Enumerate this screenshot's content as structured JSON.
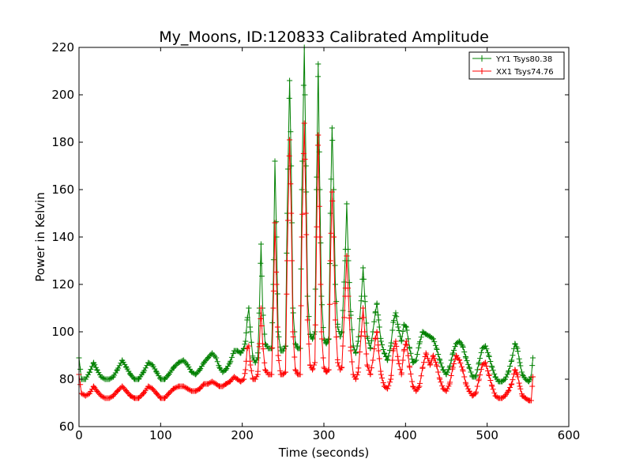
{
  "chart_data": {
    "type": "line",
    "title": "My_Moons, ID:120833 Calibrated Amplitude",
    "xlabel": "Time (seconds)",
    "ylabel": "Power in Kelvin",
    "xlim": [
      0,
      600
    ],
    "ylim": [
      60,
      220
    ],
    "xticks": [
      0,
      100,
      200,
      300,
      400,
      500,
      600
    ],
    "yticks": [
      60,
      80,
      100,
      120,
      140,
      160,
      180,
      200,
      220
    ],
    "grid": false,
    "legend_position": "top-right",
    "marker": "+",
    "series": [
      {
        "name": "YY1 Tsys80.38",
        "color": "#008000",
        "points": [
          [
            0,
            89
          ],
          [
            3,
            80
          ],
          [
            8,
            80
          ],
          [
            13,
            83
          ],
          [
            18,
            87
          ],
          [
            22,
            84
          ],
          [
            27,
            81
          ],
          [
            32,
            80
          ],
          [
            37,
            80
          ],
          [
            42,
            81
          ],
          [
            47,
            84
          ],
          [
            53,
            88
          ],
          [
            58,
            85
          ],
          [
            63,
            82
          ],
          [
            68,
            80
          ],
          [
            73,
            80
          ],
          [
            79,
            83
          ],
          [
            85,
            87
          ],
          [
            90,
            86
          ],
          [
            95,
            83
          ],
          [
            100,
            80
          ],
          [
            105,
            80
          ],
          [
            110,
            82
          ],
          [
            116,
            85
          ],
          [
            122,
            87
          ],
          [
            128,
            88
          ],
          [
            133,
            86
          ],
          [
            138,
            83
          ],
          [
            143,
            82
          ],
          [
            148,
            84
          ],
          [
            153,
            87
          ],
          [
            158,
            89
          ],
          [
            163,
            91
          ],
          [
            168,
            89
          ],
          [
            172,
            85
          ],
          [
            176,
            83
          ],
          [
            180,
            84
          ],
          [
            185,
            87
          ],
          [
            190,
            92
          ],
          [
            194,
            92
          ],
          [
            198,
            91
          ],
          [
            202,
            93
          ],
          [
            204,
            96
          ],
          [
            206,
            105
          ],
          [
            208,
            110
          ],
          [
            210,
            100
          ],
          [
            213,
            89
          ],
          [
            216,
            87
          ],
          [
            219,
            89
          ],
          [
            221,
            110
          ],
          [
            223,
            137
          ],
          [
            225,
            110
          ],
          [
            228,
            95
          ],
          [
            232,
            93
          ],
          [
            236,
            93
          ],
          [
            238,
            120
          ],
          [
            240,
            172
          ],
          [
            242,
            140
          ],
          [
            244,
            100
          ],
          [
            247,
            92
          ],
          [
            250,
            92
          ],
          [
            253,
            94
          ],
          [
            255,
            150
          ],
          [
            258,
            206
          ],
          [
            260,
            170
          ],
          [
            262,
            110
          ],
          [
            265,
            95
          ],
          [
            268,
            93
          ],
          [
            271,
            93
          ],
          [
            273,
            160
          ],
          [
            276,
            220
          ],
          [
            278,
            170
          ],
          [
            280,
            115
          ],
          [
            283,
            99
          ],
          [
            286,
            97
          ],
          [
            289,
            100
          ],
          [
            291,
            160
          ],
          [
            293,
            213
          ],
          [
            295,
            160
          ],
          [
            297,
            115
          ],
          [
            300,
            97
          ],
          [
            303,
            95
          ],
          [
            306,
            97
          ],
          [
            308,
            150
          ],
          [
            310,
            186
          ],
          [
            312,
            160
          ],
          [
            314,
            120
          ],
          [
            317,
            102
          ],
          [
            320,
            98
          ],
          [
            322,
            100
          ],
          [
            326,
            130
          ],
          [
            328,
            154
          ],
          [
            330,
            130
          ],
          [
            333,
            107
          ],
          [
            336,
            94
          ],
          [
            339,
            91
          ],
          [
            342,
            96
          ],
          [
            346,
            115
          ],
          [
            348,
            127
          ],
          [
            350,
            115
          ],
          [
            353,
            98
          ],
          [
            357,
            93
          ],
          [
            360,
            100
          ],
          [
            363,
            108
          ],
          [
            365,
            112
          ],
          [
            367,
            105
          ],
          [
            370,
            96
          ],
          [
            374,
            91
          ],
          [
            378,
            88
          ],
          [
            382,
            94
          ],
          [
            385,
            104
          ],
          [
            388,
            108
          ],
          [
            391,
            102
          ],
          [
            395,
            96
          ],
          [
            398,
            103
          ],
          [
            401,
            102
          ],
          [
            405,
            93
          ],
          [
            409,
            87
          ],
          [
            413,
            88
          ],
          [
            417,
            95
          ],
          [
            421,
            100
          ],
          [
            425,
            99
          ],
          [
            430,
            98
          ],
          [
            434,
            97
          ],
          [
            438,
            93
          ],
          [
            442,
            88
          ],
          [
            446,
            84
          ],
          [
            450,
            82
          ],
          [
            454,
            85
          ],
          [
            458,
            91
          ],
          [
            462,
            95
          ],
          [
            466,
            96
          ],
          [
            470,
            94
          ],
          [
            474,
            89
          ],
          [
            478,
            85
          ],
          [
            482,
            81
          ],
          [
            486,
            81
          ],
          [
            490,
            87
          ],
          [
            494,
            93
          ],
          [
            498,
            94
          ],
          [
            502,
            90
          ],
          [
            506,
            85
          ],
          [
            510,
            81
          ],
          [
            514,
            79
          ],
          [
            518,
            79
          ],
          [
            522,
            80
          ],
          [
            526,
            83
          ],
          [
            530,
            88
          ],
          [
            534,
            95
          ],
          [
            537,
            93
          ],
          [
            540,
            87
          ],
          [
            543,
            82
          ],
          [
            547,
            80
          ],
          [
            551,
            79
          ],
          [
            554,
            81
          ],
          [
            556,
            89
          ]
        ]
      },
      {
        "name": "XX1 Tsys74.76",
        "color": "#ff0000",
        "points": [
          [
            0,
            82
          ],
          [
            3,
            74
          ],
          [
            8,
            73
          ],
          [
            13,
            74
          ],
          [
            18,
            77
          ],
          [
            22,
            75
          ],
          [
            27,
            73
          ],
          [
            32,
            72
          ],
          [
            37,
            72
          ],
          [
            42,
            73
          ],
          [
            47,
            75
          ],
          [
            53,
            77
          ],
          [
            58,
            75
          ],
          [
            63,
            73
          ],
          [
            68,
            72
          ],
          [
            73,
            72
          ],
          [
            79,
            74
          ],
          [
            85,
            77
          ],
          [
            90,
            76
          ],
          [
            95,
            74
          ],
          [
            100,
            72
          ],
          [
            105,
            72
          ],
          [
            110,
            74
          ],
          [
            116,
            76
          ],
          [
            122,
            77
          ],
          [
            128,
            77
          ],
          [
            133,
            76
          ],
          [
            138,
            75
          ],
          [
            143,
            75
          ],
          [
            148,
            76
          ],
          [
            153,
            78
          ],
          [
            158,
            78
          ],
          [
            163,
            79
          ],
          [
            168,
            78
          ],
          [
            172,
            77
          ],
          [
            176,
            77
          ],
          [
            180,
            78
          ],
          [
            185,
            79
          ],
          [
            190,
            81
          ],
          [
            194,
            80
          ],
          [
            198,
            79
          ],
          [
            202,
            80
          ],
          [
            204,
            84
          ],
          [
            206,
            93
          ],
          [
            208,
            94
          ],
          [
            210,
            86
          ],
          [
            213,
            80
          ],
          [
            216,
            80
          ],
          [
            219,
            82
          ],
          [
            221,
            95
          ],
          [
            223,
            110
          ],
          [
            225,
            95
          ],
          [
            228,
            84
          ],
          [
            232,
            82
          ],
          [
            236,
            82
          ],
          [
            238,
            110
          ],
          [
            240,
            146
          ],
          [
            242,
            120
          ],
          [
            244,
            90
          ],
          [
            247,
            82
          ],
          [
            250,
            82
          ],
          [
            253,
            83
          ],
          [
            255,
            130
          ],
          [
            258,
            181
          ],
          [
            260,
            150
          ],
          [
            262,
            100
          ],
          [
            265,
            84
          ],
          [
            268,
            82
          ],
          [
            271,
            82
          ],
          [
            273,
            140
          ],
          [
            276,
            188
          ],
          [
            278,
            150
          ],
          [
            280,
            105
          ],
          [
            283,
            86
          ],
          [
            286,
            84
          ],
          [
            289,
            87
          ],
          [
            291,
            140
          ],
          [
            293,
            183
          ],
          [
            295,
            140
          ],
          [
            297,
            100
          ],
          [
            300,
            85
          ],
          [
            303,
            83
          ],
          [
            306,
            84
          ],
          [
            308,
            130
          ],
          [
            310,
            159
          ],
          [
            312,
            140
          ],
          [
            314,
            105
          ],
          [
            317,
            87
          ],
          [
            320,
            84
          ],
          [
            322,
            85
          ],
          [
            326,
            115
          ],
          [
            328,
            132
          ],
          [
            330,
            115
          ],
          [
            333,
            92
          ],
          [
            336,
            82
          ],
          [
            339,
            80
          ],
          [
            342,
            83
          ],
          [
            346,
            100
          ],
          [
            348,
            110
          ],
          [
            350,
            100
          ],
          [
            353,
            86
          ],
          [
            357,
            82
          ],
          [
            360,
            88
          ],
          [
            363,
            97
          ],
          [
            365,
            100
          ],
          [
            367,
            92
          ],
          [
            370,
            82
          ],
          [
            374,
            77
          ],
          [
            378,
            76
          ],
          [
            382,
            80
          ],
          [
            385,
            92
          ],
          [
            388,
            96
          ],
          [
            391,
            88
          ],
          [
            395,
            82
          ],
          [
            398,
            92
          ],
          [
            401,
            96
          ],
          [
            405,
            85
          ],
          [
            409,
            77
          ],
          [
            413,
            75
          ],
          [
            417,
            77
          ],
          [
            421,
            85
          ],
          [
            425,
            91
          ],
          [
            430,
            86
          ],
          [
            434,
            90
          ],
          [
            438,
            86
          ],
          [
            442,
            80
          ],
          [
            446,
            76
          ],
          [
            450,
            75
          ],
          [
            454,
            78
          ],
          [
            458,
            85
          ],
          [
            462,
            90
          ],
          [
            466,
            88
          ],
          [
            470,
            84
          ],
          [
            474,
            78
          ],
          [
            478,
            75
          ],
          [
            482,
            73
          ],
          [
            486,
            74
          ],
          [
            490,
            80
          ],
          [
            494,
            86
          ],
          [
            498,
            87
          ],
          [
            502,
            82
          ],
          [
            506,
            77
          ],
          [
            510,
            73
          ],
          [
            514,
            72
          ],
          [
            518,
            72
          ],
          [
            522,
            73
          ],
          [
            526,
            75
          ],
          [
            530,
            78
          ],
          [
            534,
            84
          ],
          [
            537,
            82
          ],
          [
            540,
            77
          ],
          [
            543,
            73
          ],
          [
            547,
            72
          ],
          [
            551,
            71
          ],
          [
            554,
            71
          ],
          [
            556,
            81
          ]
        ]
      }
    ]
  }
}
